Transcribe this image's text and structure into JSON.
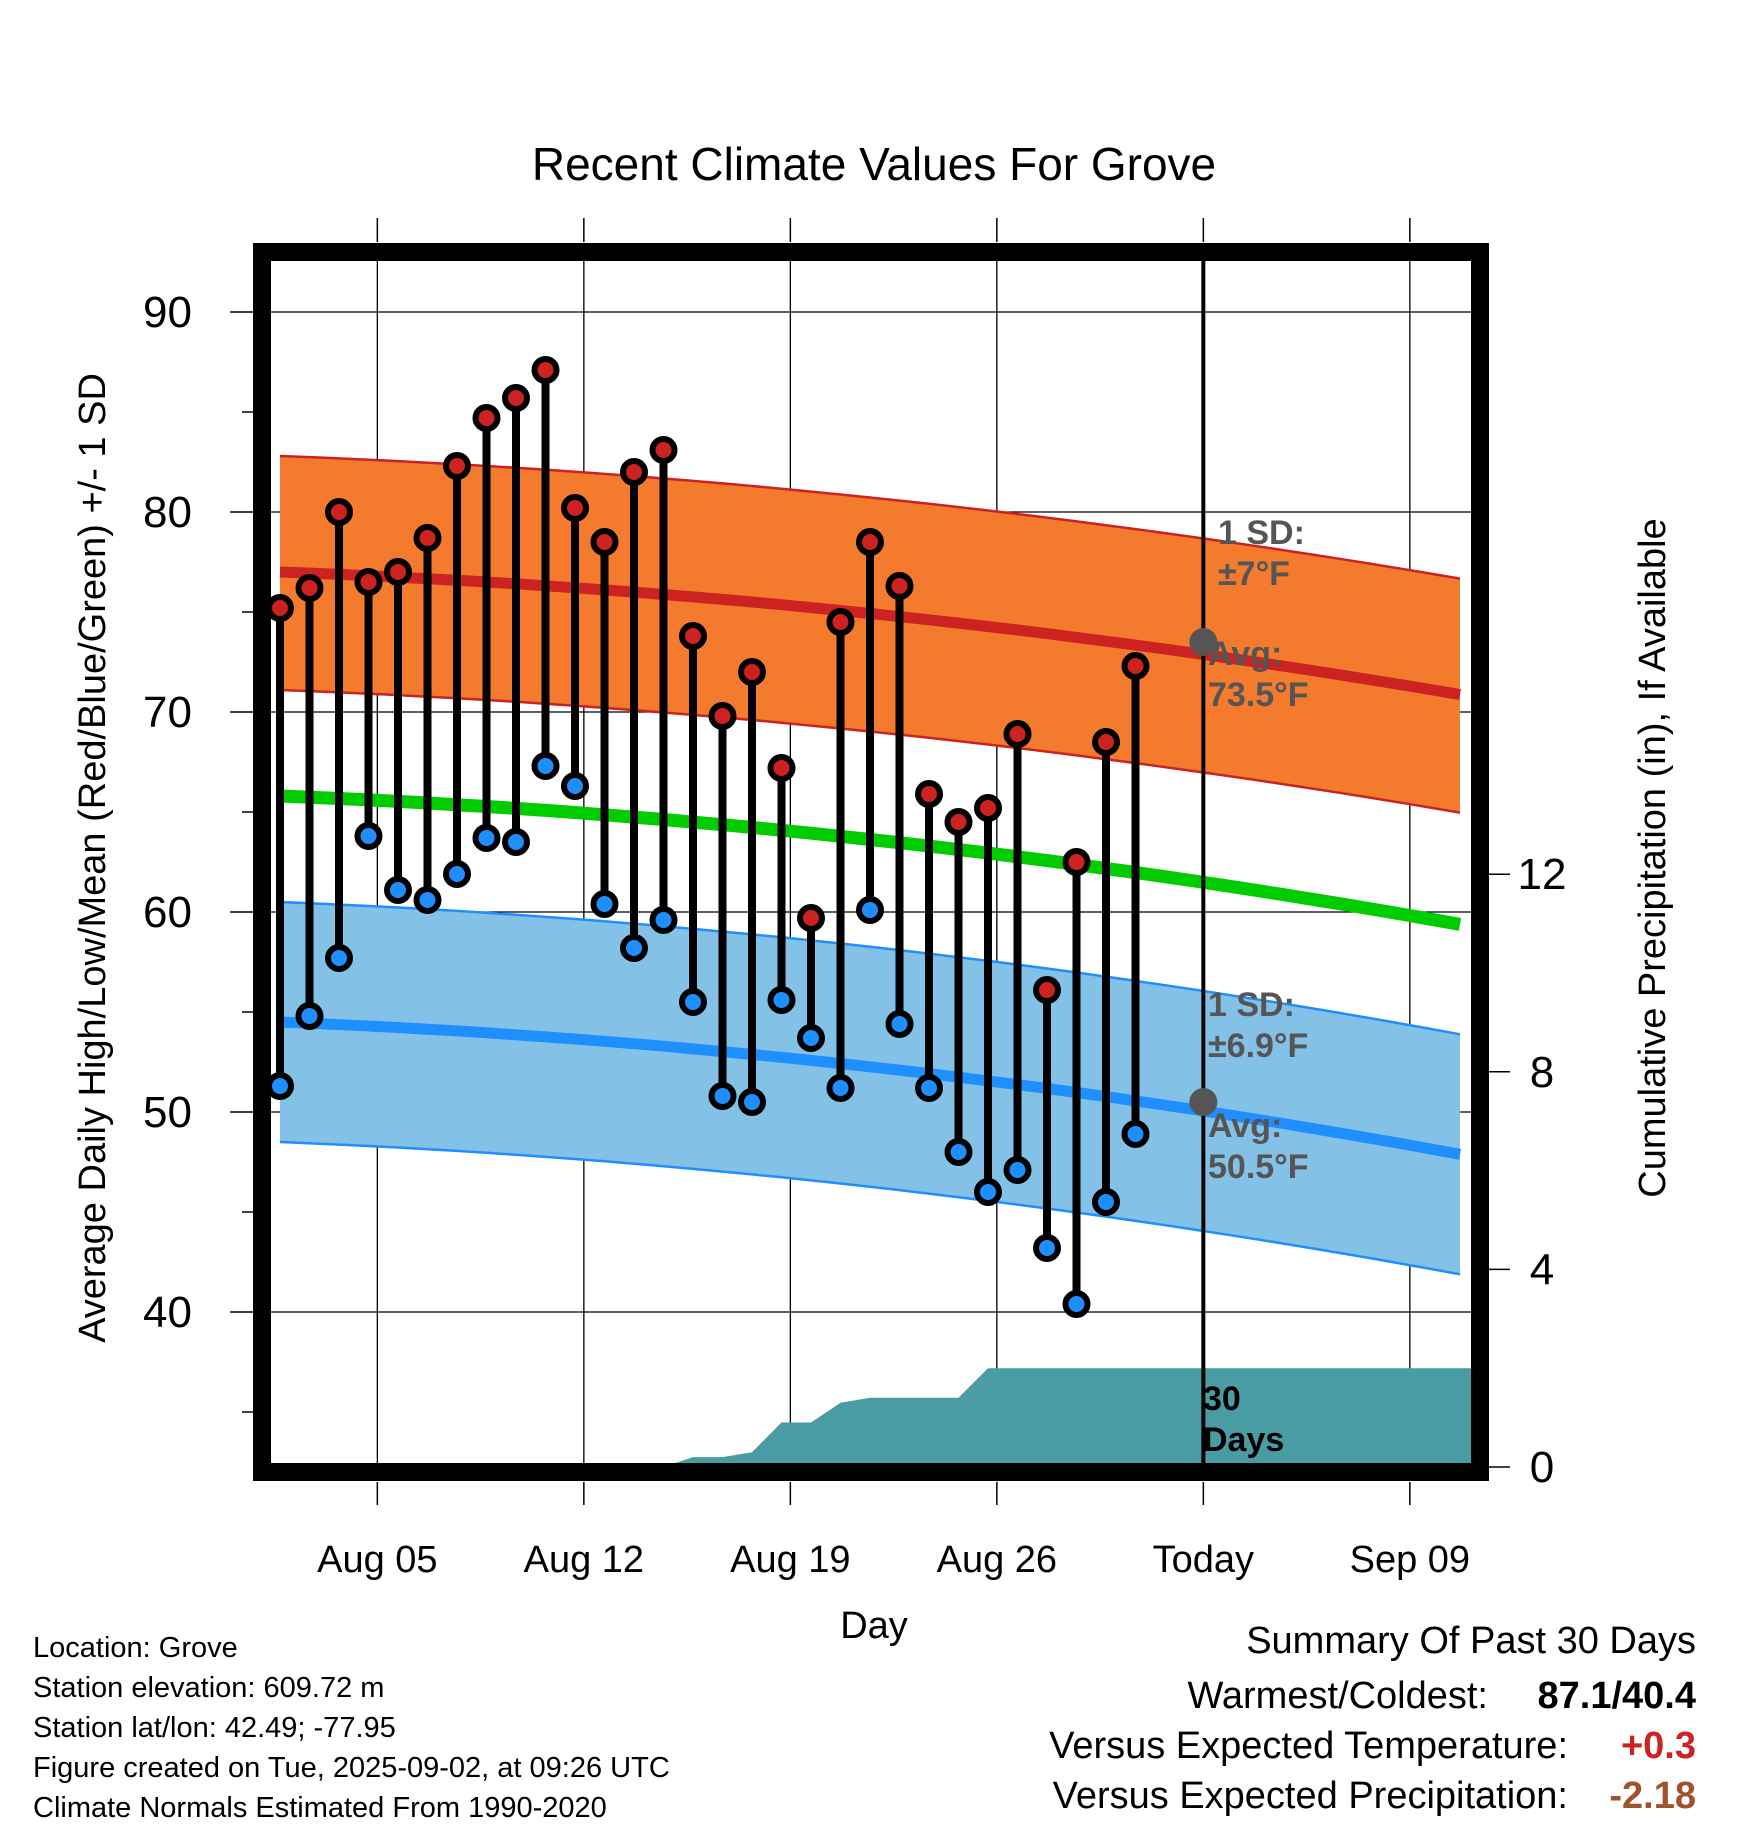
{
  "chart_data": {
    "type": "line",
    "title": "Recent Climate Values For Grove",
    "xlabel": "Day",
    "ylabel": "Average Daily High/Low/Mean (Red/Blue/Green) +/- 1 SD",
    "y2label": "Cumulative Precipitation (in), If Available",
    "x_ticks": [
      "Aug 05",
      "Aug 12",
      "Aug 19",
      "Aug 26",
      "Today",
      "Sep 09"
    ],
    "ylim": [
      32,
      93
    ],
    "y_ticks": [
      40,
      50,
      60,
      70,
      80,
      90
    ],
    "y2_ticks": [
      0,
      4,
      8,
      12
    ],
    "y2lim": [
      0,
      24
    ],
    "grid": true,
    "daily_highs": [
      75.2,
      76.2,
      80.0,
      76.5,
      77.0,
      78.7,
      82.3,
      84.7,
      85.7,
      87.1,
      80.2,
      78.5,
      82.0,
      83.1,
      73.8,
      69.8,
      72.0,
      67.2,
      59.7,
      74.5,
      78.5,
      76.3,
      65.9,
      64.5,
      65.2,
      68.9,
      56.1,
      62.5,
      68.5,
      72.3
    ],
    "daily_lows": [
      51.3,
      54.8,
      57.7,
      63.8,
      61.1,
      60.6,
      61.9,
      63.7,
      63.5,
      67.3,
      66.3,
      60.4,
      58.2,
      59.6,
      55.5,
      50.8,
      50.5,
      55.6,
      53.7,
      51.2,
      60.1,
      54.4,
      51.2,
      48.0,
      46.0,
      47.1,
      43.2,
      40.4,
      45.5,
      48.9
    ],
    "normal_high": {
      "start": 77.0,
      "end": 70.7,
      "sd": "±7°F",
      "avg_label": "Avg:",
      "avg_value": "73.5°F"
    },
    "normal_low": {
      "start": 54.5,
      "end": 47.7,
      "sd": "±6.9°F",
      "avg_label": "Avg:",
      "avg_value": "50.5°F"
    },
    "normal_mean": {
      "start": 65.8,
      "end": 59.2
    },
    "sd_label": "1 SD:",
    "precip": [
      0,
      0,
      0,
      0,
      0,
      0,
      0,
      0,
      0,
      0,
      0,
      0,
      0,
      0,
      0.2,
      0.2,
      0.3,
      0.9,
      0.9,
      1.3,
      1.4,
      1.4,
      1.4,
      1.4,
      2.0,
      2.0,
      2.0,
      2.0,
      2.0,
      2.0
    ],
    "precip_label": "30 Days",
    "colors": {
      "high": "#cc2222",
      "low": "#1f8fff",
      "mean": "#00cc00",
      "high_band": "#f47a2e",
      "low_band": "#84c1e6",
      "precip": "#4a9ca4"
    }
  },
  "info": {
    "location": "Location: Grove",
    "elevation": "Station elevation: 609.72 m",
    "latlon": "Station lat/lon: 42.49; -77.95",
    "created": "Figure created on Tue, 2025-09-02, at 09:26 UTC",
    "normals": "Climate Normals Estimated From 1990-2020"
  },
  "summary": {
    "title": "Summary Of Past 30 Days",
    "warm_cold_label": "Warmest/Coldest:",
    "warm_cold_value": "87.1/40.4",
    "temp_label": "Versus Expected Temperature:",
    "temp_value": "+0.3",
    "temp_color": "#cc2222",
    "precip_label": "Versus Expected Precipitation:",
    "precip_value": "-2.18",
    "precip_color": "#a0522d"
  }
}
